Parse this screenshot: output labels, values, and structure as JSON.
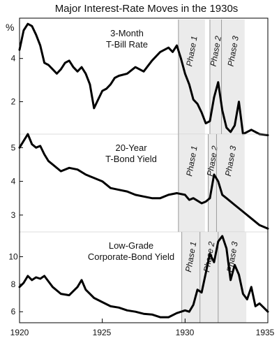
{
  "chart_data": {
    "type": "line",
    "title": "Major Interest-Rate Moves in the 1930s",
    "y_unit_label": "%",
    "xlim": [
      1920,
      1935
    ],
    "x_ticks": [
      "1920",
      "1925",
      "1930",
      "1935"
    ],
    "colors": {
      "line": "#000000",
      "phase_band": "#e4e4e4",
      "phase_edge": "#9a9a9a"
    },
    "panels": [
      {
        "label_lines": [
          "3-Month",
          "T-Bill Rate"
        ],
        "ylim": [
          0.5,
          5.8
        ],
        "y_ticks": [
          2,
          4
        ],
        "phases": [
          {
            "label": "Phase 1",
            "start": 1929.6,
            "end": 1931.2
          },
          {
            "label": "Phase 2",
            "start": 1931.5,
            "end": 1932.2
          },
          {
            "label": "Phase 3",
            "start": 1932.2,
            "end": 1933.6
          }
        ],
        "series": {
          "x": [
            1920.0,
            1920.25,
            1920.5,
            1920.75,
            1921.0,
            1921.25,
            1921.5,
            1921.75,
            1922.0,
            1922.25,
            1922.5,
            1922.75,
            1923.0,
            1923.25,
            1923.5,
            1923.75,
            1924.0,
            1924.25,
            1924.5,
            1924.75,
            1925.0,
            1925.25,
            1925.5,
            1925.75,
            1926.0,
            1926.5,
            1927.0,
            1927.5,
            1928.0,
            1928.5,
            1929.0,
            1929.25,
            1929.5,
            1929.75,
            1930.0,
            1930.25,
            1930.5,
            1930.75,
            1931.0,
            1931.25,
            1931.5,
            1931.75,
            1932.0,
            1932.25,
            1932.5,
            1932.75,
            1933.0,
            1933.25,
            1933.5,
            1933.75,
            1934.0,
            1934.5,
            1935.0
          ],
          "y": [
            4.4,
            5.3,
            5.6,
            5.5,
            5.1,
            4.6,
            3.8,
            3.7,
            3.5,
            3.3,
            3.5,
            3.8,
            3.9,
            3.6,
            3.4,
            3.6,
            3.3,
            2.8,
            1.7,
            2.1,
            2.5,
            2.6,
            2.8,
            3.1,
            3.2,
            3.3,
            3.6,
            3.4,
            3.9,
            4.3,
            4.5,
            4.3,
            4.6,
            4.0,
            3.3,
            2.8,
            2.1,
            1.9,
            1.5,
            1.0,
            1.1,
            2.2,
            2.9,
            1.6,
            0.8,
            0.6,
            0.9,
            2.0,
            0.5,
            0.6,
            0.7,
            0.5,
            0.45
          ]
        }
      },
      {
        "label_lines": [
          "20-Year",
          "T-Bond Yield"
        ],
        "ylim": [
          2.5,
          5.4
        ],
        "y_ticks": [
          3,
          4,
          5
        ],
        "phases": [
          {
            "label": "Phase 1",
            "start": 1929.6,
            "end": 1931.2
          },
          {
            "label": "Phase 2",
            "start": 1931.4,
            "end": 1931.9
          },
          {
            "label": "Phase 3",
            "start": 1931.9,
            "end": 1933.6
          }
        ],
        "series": {
          "x": [
            1920.0,
            1920.25,
            1920.5,
            1920.75,
            1921.0,
            1921.25,
            1921.5,
            1921.75,
            1922.0,
            1922.5,
            1923.0,
            1923.5,
            1924.0,
            1924.5,
            1925.0,
            1925.5,
            1926.0,
            1926.5,
            1927.0,
            1927.5,
            1928.0,
            1928.5,
            1929.0,
            1929.5,
            1930.0,
            1930.25,
            1930.5,
            1931.0,
            1931.25,
            1931.5,
            1931.75,
            1932.0,
            1932.25,
            1932.5,
            1933.0,
            1933.5,
            1934.0,
            1934.5,
            1935.0
          ],
          "y": [
            5.0,
            5.2,
            5.4,
            5.1,
            5.0,
            5.05,
            4.8,
            4.6,
            4.5,
            4.3,
            4.4,
            4.35,
            4.2,
            4.1,
            4.0,
            3.8,
            3.75,
            3.7,
            3.6,
            3.55,
            3.5,
            3.5,
            3.6,
            3.65,
            3.6,
            3.45,
            3.5,
            3.35,
            3.4,
            3.5,
            4.2,
            4.0,
            3.6,
            3.5,
            3.3,
            3.1,
            2.9,
            2.7,
            2.6
          ]
        }
      },
      {
        "label_lines": [
          "Low-Grade",
          "Corporate-Bond Yield"
        ],
        "ylim": [
          5.2,
          11.8
        ],
        "y_ticks": [
          6,
          8,
          10
        ],
        "phases": [
          {
            "label": "Phase 1",
            "start": 1929.8,
            "end": 1930.9
          },
          {
            "label": "Phase 2",
            "start": 1930.9,
            "end": 1932.0
          },
          {
            "label": "Phase 3",
            "start": 1932.0,
            "end": 1933.7
          }
        ],
        "series": {
          "x": [
            1920.0,
            1920.25,
            1920.5,
            1920.75,
            1921.0,
            1921.25,
            1921.5,
            1921.75,
            1922.0,
            1922.5,
            1923.0,
            1923.5,
            1923.75,
            1924.0,
            1924.5,
            1925.0,
            1925.5,
            1926.0,
            1926.5,
            1927.0,
            1927.5,
            1928.0,
            1928.5,
            1929.0,
            1929.5,
            1930.0,
            1930.25,
            1930.5,
            1930.75,
            1931.0,
            1931.25,
            1931.5,
            1931.75,
            1932.0,
            1932.25,
            1932.5,
            1932.75,
            1933.0,
            1933.25,
            1933.5,
            1933.75,
            1934.0,
            1934.25,
            1934.5,
            1934.75,
            1935.0
          ],
          "y": [
            7.8,
            8.1,
            8.6,
            8.3,
            8.5,
            8.4,
            8.6,
            8.2,
            7.8,
            7.3,
            7.2,
            7.8,
            8.3,
            7.6,
            7.0,
            6.7,
            6.4,
            6.3,
            6.1,
            6.0,
            5.85,
            5.8,
            5.6,
            5.6,
            5.9,
            6.1,
            6.0,
            6.5,
            7.6,
            7.4,
            8.8,
            10.2,
            9.6,
            11.1,
            11.5,
            10.6,
            8.3,
            9.4,
            8.7,
            7.3,
            6.9,
            7.8,
            6.4,
            6.6,
            6.3,
            6.0
          ]
        }
      }
    ]
  }
}
